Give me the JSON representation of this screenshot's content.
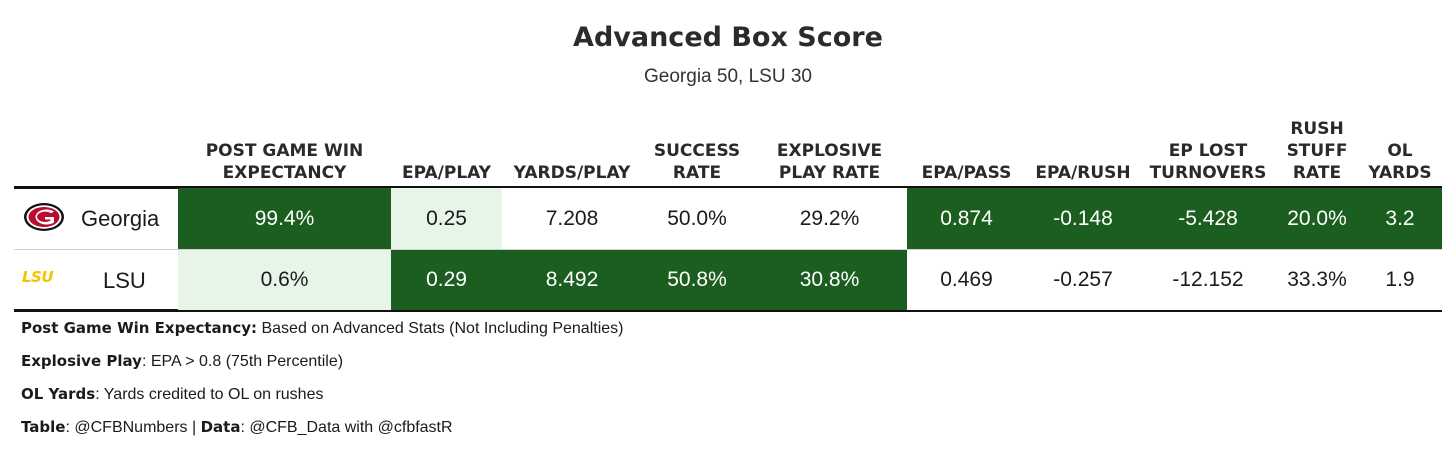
{
  "title": "Advanced Box Score",
  "subtitle": "Georgia 50, LSU 30",
  "chart_data": {
    "type": "table",
    "title": "Advanced Box Score",
    "subtitle": "Georgia 50, LSU 30",
    "columns": [
      "POST GAME WIN\nEXPECTANCY",
      "EPA/PLAY",
      "YARDS/PLAY",
      "SUCCESS\nRATE",
      "EXPLOSIVE\nPLAY RATE",
      "EPA/PASS",
      "EPA/RUSH",
      "EP LOST\nTURNOVERS",
      "RUSH\nSTUFF\nRATE",
      "OL\nYARDS"
    ],
    "rows": [
      {
        "team": "Georgia",
        "logo": "georgia-g-logo",
        "values": [
          "99.4%",
          "0.25",
          "7.208",
          "50.0%",
          "29.2%",
          "0.874",
          "-0.148",
          "-5.428",
          "20.0%",
          "3.2"
        ],
        "highlight": [
          "dark",
          "light",
          "plain",
          "plain",
          "plain",
          "dark",
          "dark",
          "dark",
          "dark",
          "dark"
        ]
      },
      {
        "team": "LSU",
        "logo": "lsu-logo",
        "values": [
          "0.6%",
          "0.29",
          "8.492",
          "50.8%",
          "30.8%",
          "0.469",
          "-0.257",
          "-12.152",
          "33.3%",
          "1.9"
        ],
        "highlight": [
          "light",
          "dark",
          "dark",
          "dark",
          "dark",
          "plain",
          "plain",
          "plain",
          "plain",
          "plain"
        ]
      }
    ],
    "colors": {
      "better": "#1c5e20",
      "worse": "#e7f5e8",
      "lsu_logo": "#f5c400",
      "georgia_logo": "#ba0c2f"
    }
  },
  "notes": [
    {
      "label": "Post Game Win Expectancy:",
      "text": " Based on Advanced Stats (Not Including Penalties)"
    },
    {
      "label": "Explosive Play",
      "text": ": EPA > 0.8 (75th Percentile)"
    },
    {
      "label": "OL Yards",
      "text": ": Yards credited to OL on rushes"
    }
  ],
  "credit": {
    "table_label": "Table",
    "table_text": ": @CFBNumbers | ",
    "data_label": "Data",
    "data_text": ": @CFB_Data with @cfbfastR"
  }
}
